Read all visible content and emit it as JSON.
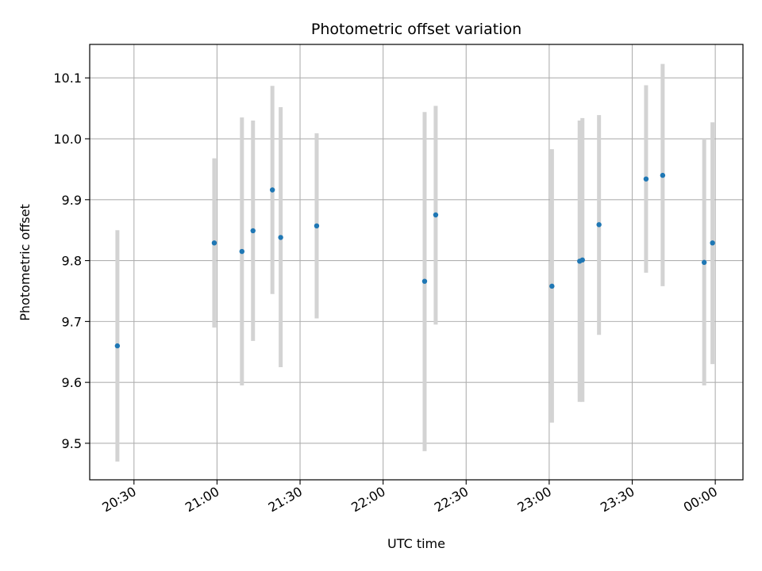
{
  "chart_data": {
    "type": "scatter",
    "title": "Photometric offset variation",
    "xlabel": "UTC time",
    "ylabel": "Photometric offset",
    "x_ticks": [
      "20:30",
      "21:00",
      "21:30",
      "22:00",
      "22:30",
      "23:00",
      "23:30",
      "00:00"
    ],
    "y_ticks": [
      "9.5",
      "9.6",
      "9.7",
      "9.8",
      "9.9",
      "10.0",
      "10.1"
    ],
    "xlim": [
      "20:14",
      "00:10"
    ],
    "ylim": [
      9.44,
      10.155
    ],
    "grid": true,
    "marker_color": "#1f77b4",
    "errorbar_color": "#d3d3d3",
    "points": [
      {
        "x": "20:24",
        "y": 9.66,
        "low": 9.47,
        "high": 9.85
      },
      {
        "x": "20:59",
        "y": 9.829,
        "low": 9.69,
        "high": 9.968
      },
      {
        "x": "21:09",
        "y": 9.815,
        "low": 9.595,
        "high": 10.035
      },
      {
        "x": "21:13",
        "y": 9.849,
        "low": 9.668,
        "high": 10.03
      },
      {
        "x": "21:20",
        "y": 9.916,
        "low": 9.745,
        "high": 10.087
      },
      {
        "x": "21:23",
        "y": 9.838,
        "low": 9.625,
        "high": 10.052
      },
      {
        "x": "21:36",
        "y": 9.857,
        "low": 9.705,
        "high": 10.009
      },
      {
        "x": "22:15",
        "y": 9.766,
        "low": 9.487,
        "high": 10.044
      },
      {
        "x": "22:19",
        "y": 9.875,
        "low": 9.695,
        "high": 10.054
      },
      {
        "x": "23:01",
        "y": 9.758,
        "low": 9.534,
        "high": 9.983
      },
      {
        "x": "23:11",
        "y": 9.799,
        "low": 9.568,
        "high": 10.03
      },
      {
        "x": "23:12",
        "y": 9.801,
        "low": 9.568,
        "high": 10.034
      },
      {
        "x": "23:18",
        "y": 9.859,
        "low": 9.678,
        "high": 10.039
      },
      {
        "x": "23:35",
        "y": 9.934,
        "low": 9.78,
        "high": 10.088
      },
      {
        "x": "23:41",
        "y": 9.94,
        "low": 9.758,
        "high": 10.123
      },
      {
        "x": "23:56",
        "y": 9.797,
        "low": 9.595,
        "high": 10.0
      },
      {
        "x": "23:59",
        "y": 9.829,
        "low": 9.63,
        "high": 10.027
      }
    ]
  }
}
